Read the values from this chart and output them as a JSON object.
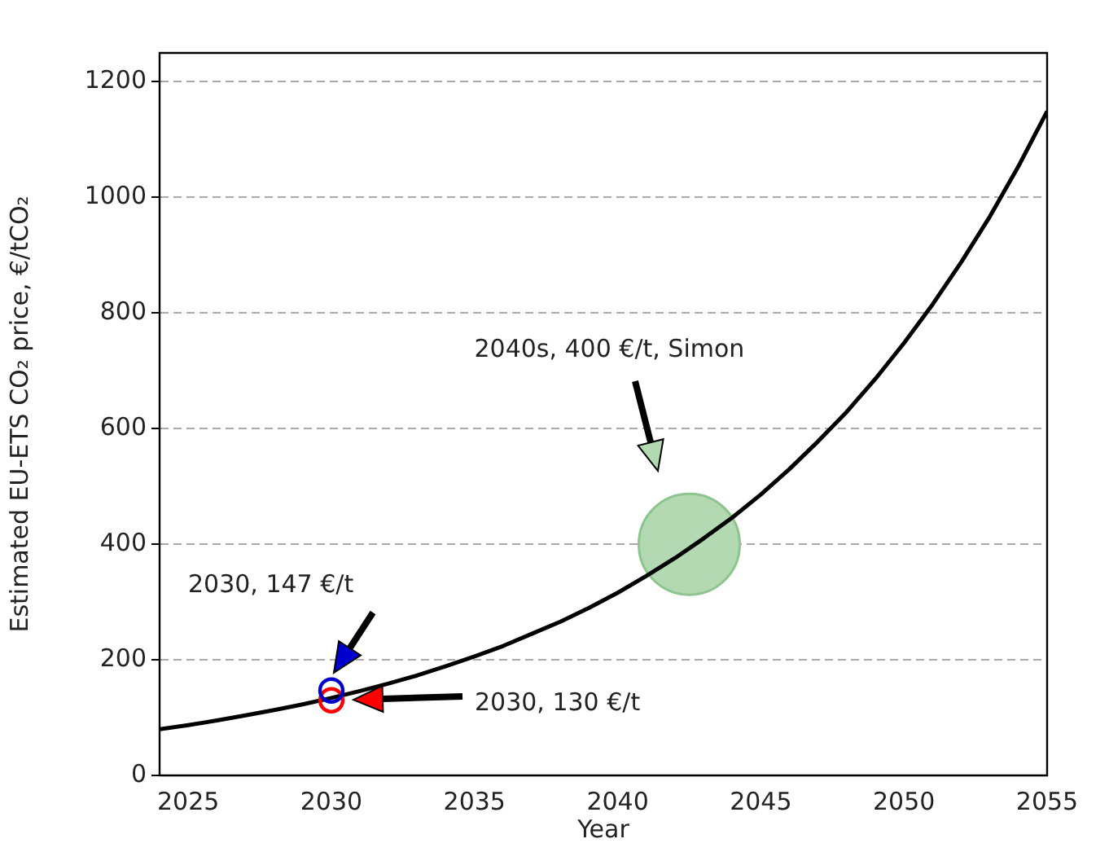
{
  "chart_data": {
    "type": "line",
    "xlabel": "Year",
    "ylabel": "Estimated EU-ETS CO₂ price, €/tCO₂",
    "xlim": [
      2024,
      2055
    ],
    "xticks": [
      2025,
      2030,
      2035,
      2040,
      2045,
      2050,
      2055
    ],
    "ylim": [
      0,
      1250
    ],
    "yticks": [
      0,
      200,
      400,
      600,
      800,
      1000,
      1200
    ],
    "grid": "y",
    "series": [
      {
        "type": "line",
        "color": "#000000",
        "marker": "none",
        "x": [
          2024,
          2025,
          2026,
          2027,
          2028,
          2029,
          2030,
          2031,
          2032,
          2033,
          2034,
          2035,
          2036,
          2037,
          2038,
          2039,
          2040,
          2041,
          2042,
          2043,
          2044,
          2045,
          2046,
          2047,
          2048,
          2049,
          2050,
          2051,
          2052,
          2053,
          2054,
          2055
        ],
        "values": [
          80,
          87,
          95,
          104,
          113,
          123,
          134,
          146,
          159,
          173,
          189,
          206,
          224,
          245,
          266,
          290,
          316,
          345,
          376,
          410,
          446,
          486,
          530,
          578,
          629,
          686,
          748,
          815,
          888,
          967,
          1054,
          1149
        ]
      },
      {
        "type": "scatter",
        "color": "#0000cc",
        "marker": "circle",
        "x": [
          2030
        ],
        "values": [
          147
        ]
      },
      {
        "type": "scatter",
        "color": "#ff0000",
        "marker": "circle",
        "x": [
          2030
        ],
        "values": [
          130
        ]
      },
      {
        "type": "bubble",
        "color": "#b3d9b3",
        "x": [
          2042.5
        ],
        "values": [
          400
        ],
        "sizes": [
          1
        ]
      }
    ],
    "annotations": [
      "2030, 147 €/t",
      "2030, 130 €/t",
      "2040s, 400 €/t, Simon"
    ]
  }
}
